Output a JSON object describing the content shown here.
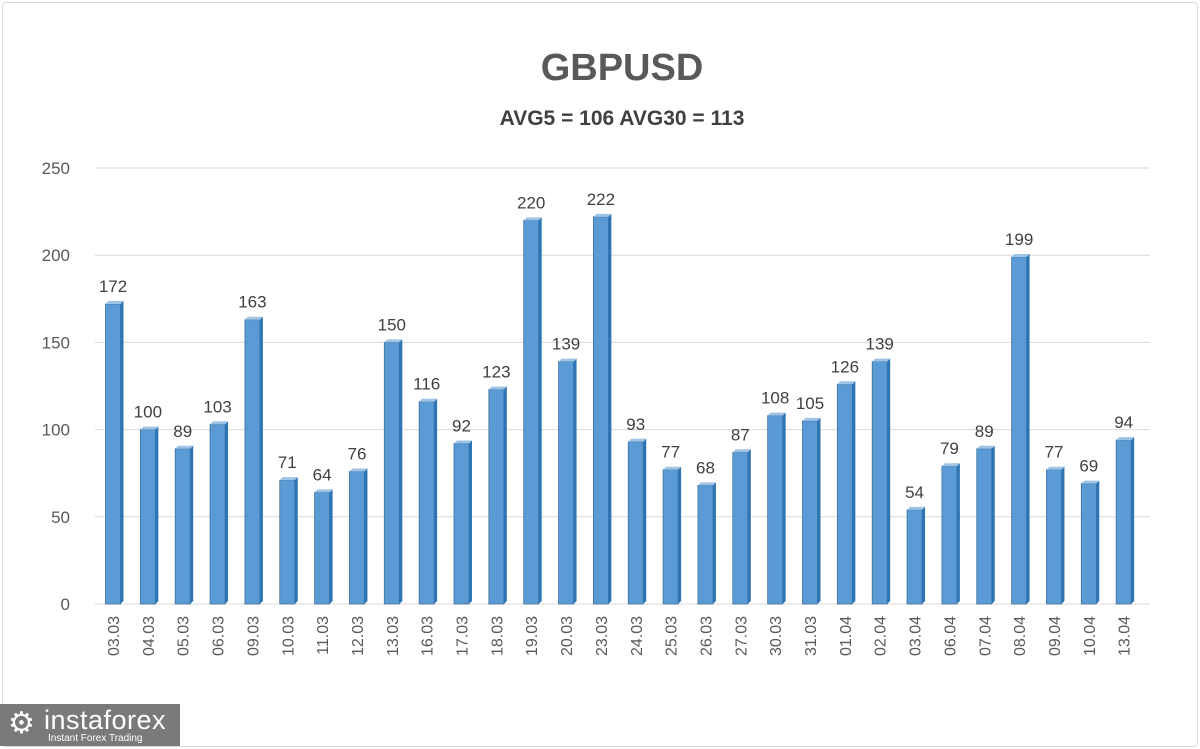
{
  "chart_data": {
    "type": "bar",
    "title": "GBPUSD",
    "subtitle": "AVG5 = 106 AVG30 = 113",
    "xlabel": "",
    "ylabel": "",
    "ylim": [
      0,
      250
    ],
    "yticks": [
      0,
      50,
      100,
      150,
      200,
      250
    ],
    "grid": true,
    "bar_color": "#5b9bd5",
    "categories": [
      "03.03",
      "04.03",
      "05.03",
      "06.03",
      "09.03",
      "10.03",
      "11.03",
      "12.03",
      "13.03",
      "16.03",
      "17.03",
      "18.03",
      "19.03",
      "20.03",
      "23.03",
      "24.03",
      "25.03",
      "26.03",
      "27.03",
      "30.03",
      "31.03",
      "01.04",
      "02.04",
      "03.04",
      "06.04",
      "07.04",
      "08.04",
      "09.04",
      "10.04",
      "13.04"
    ],
    "values": [
      172,
      100,
      89,
      103,
      163,
      71,
      64,
      76,
      150,
      116,
      92,
      123,
      220,
      139,
      222,
      93,
      77,
      68,
      87,
      108,
      105,
      126,
      139,
      54,
      79,
      89,
      199,
      77,
      69,
      94
    ]
  },
  "logo": {
    "name": "instaforex",
    "tagline": "Instant Forex Trading"
  }
}
